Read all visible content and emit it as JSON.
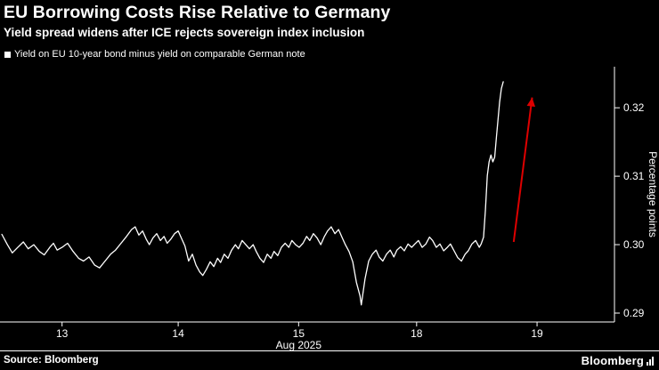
{
  "header": {
    "title": "EU Borrowing Costs Rise Relative to Germany",
    "subtitle": "Yield spread widens after ICE rejects sovereign index inclusion"
  },
  "legend": {
    "swatch_color": "#ffffff",
    "label": "Yield on EU 10-year bond minus yield on comparable German note"
  },
  "footer": {
    "source": "Source: Bloomberg",
    "logo": "Bloomberg"
  },
  "chart_data": {
    "type": "line",
    "title": "EU Borrowing Costs Rise Relative to Germany",
    "subtitle": "Yield spread widens after ICE rejects sovereign index inclusion",
    "series_name": "Yield on EU 10-year bond minus yield on comparable German note",
    "xlabel": "Aug 2025",
    "xlabel_pos": 0.486,
    "ylabel": "Percentage points",
    "ylim": [
      0.2887,
      0.326
    ],
    "yticks": [
      0.29,
      0.3,
      0.31,
      0.32
    ],
    "ytick_labels": [
      "0.29",
      "0.30",
      "0.31",
      "0.32"
    ],
    "xticks": [
      {
        "pos": 0.101,
        "label": "13"
      },
      {
        "pos": 0.29,
        "label": "14"
      },
      {
        "pos": 0.486,
        "label": "15"
      },
      {
        "pos": 0.678,
        "label": "18"
      },
      {
        "pos": 0.874,
        "label": "19"
      }
    ],
    "grid": false,
    "legend_position": "top-left",
    "axis_color": "#ffffff",
    "line_color": "#ffffff",
    "annotation_arrow": {
      "color": "#dd0000",
      "x1": 0.836,
      "v1": 0.3004,
      "x2": 0.866,
      "v2": 0.3215
    },
    "points": [
      [
        0.003,
        0.3015
      ],
      [
        0.012,
        0.3
      ],
      [
        0.02,
        0.2988
      ],
      [
        0.029,
        0.2996
      ],
      [
        0.038,
        0.3004
      ],
      [
        0.046,
        0.2994
      ],
      [
        0.055,
        0.3
      ],
      [
        0.064,
        0.299
      ],
      [
        0.072,
        0.2985
      ],
      [
        0.081,
        0.2996
      ],
      [
        0.087,
        0.3002
      ],
      [
        0.093,
        0.2992
      ],
      [
        0.101,
        0.2996
      ],
      [
        0.11,
        0.3002
      ],
      [
        0.119,
        0.299
      ],
      [
        0.128,
        0.298
      ],
      [
        0.136,
        0.2976
      ],
      [
        0.145,
        0.2982
      ],
      [
        0.154,
        0.297
      ],
      [
        0.162,
        0.2966
      ],
      [
        0.171,
        0.2976
      ],
      [
        0.18,
        0.2986
      ],
      [
        0.188,
        0.2992
      ],
      [
        0.197,
        0.3002
      ],
      [
        0.206,
        0.3012
      ],
      [
        0.214,
        0.3022
      ],
      [
        0.22,
        0.3026
      ],
      [
        0.226,
        0.3014
      ],
      [
        0.232,
        0.302
      ],
      [
        0.238,
        0.3008
      ],
      [
        0.243,
        0.3
      ],
      [
        0.249,
        0.301
      ],
      [
        0.255,
        0.3016
      ],
      [
        0.261,
        0.3006
      ],
      [
        0.267,
        0.3012
      ],
      [
        0.272,
        0.3002
      ],
      [
        0.278,
        0.3008
      ],
      [
        0.284,
        0.3016
      ],
      [
        0.29,
        0.302
      ],
      [
        0.296,
        0.3008
      ],
      [
        0.301,
        0.2998
      ],
      [
        0.307,
        0.2976
      ],
      [
        0.313,
        0.2986
      ],
      [
        0.319,
        0.297
      ],
      [
        0.325,
        0.296
      ],
      [
        0.33,
        0.2955
      ],
      [
        0.336,
        0.2964
      ],
      [
        0.342,
        0.2975
      ],
      [
        0.348,
        0.2968
      ],
      [
        0.354,
        0.298
      ],
      [
        0.359,
        0.2974
      ],
      [
        0.365,
        0.2986
      ],
      [
        0.371,
        0.298
      ],
      [
        0.377,
        0.2992
      ],
      [
        0.383,
        0.3
      ],
      [
        0.388,
        0.2994
      ],
      [
        0.394,
        0.3006
      ],
      [
        0.4,
        0.3
      ],
      [
        0.406,
        0.2994
      ],
      [
        0.412,
        0.3
      ],
      [
        0.417,
        0.299
      ],
      [
        0.423,
        0.298
      ],
      [
        0.429,
        0.2974
      ],
      [
        0.435,
        0.2986
      ],
      [
        0.441,
        0.298
      ],
      [
        0.446,
        0.299
      ],
      [
        0.452,
        0.2984
      ],
      [
        0.458,
        0.2996
      ],
      [
        0.464,
        0.3002
      ],
      [
        0.47,
        0.2996
      ],
      [
        0.475,
        0.3006
      ],
      [
        0.481,
        0.3
      ],
      [
        0.487,
        0.2996
      ],
      [
        0.493,
        0.3002
      ],
      [
        0.499,
        0.3012
      ],
      [
        0.504,
        0.3006
      ],
      [
        0.51,
        0.3016
      ],
      [
        0.516,
        0.301
      ],
      [
        0.522,
        0.3
      ],
      [
        0.528,
        0.3012
      ],
      [
        0.533,
        0.302
      ],
      [
        0.539,
        0.3026
      ],
      [
        0.545,
        0.3016
      ],
      [
        0.551,
        0.3022
      ],
      [
        0.557,
        0.301
      ],
      [
        0.562,
        0.3
      ],
      [
        0.568,
        0.299
      ],
      [
        0.574,
        0.2975
      ],
      [
        0.58,
        0.2945
      ],
      [
        0.586,
        0.2925
      ],
      [
        0.588,
        0.2912
      ],
      [
        0.594,
        0.295
      ],
      [
        0.6,
        0.2976
      ],
      [
        0.606,
        0.2986
      ],
      [
        0.612,
        0.2992
      ],
      [
        0.617,
        0.2982
      ],
      [
        0.623,
        0.2976
      ],
      [
        0.629,
        0.2986
      ],
      [
        0.635,
        0.2992
      ],
      [
        0.641,
        0.2982
      ],
      [
        0.646,
        0.2992
      ],
      [
        0.652,
        0.2997
      ],
      [
        0.658,
        0.2991
      ],
      [
        0.664,
        0.3001
      ],
      [
        0.67,
        0.2996
      ],
      [
        0.675,
        0.3001
      ],
      [
        0.681,
        0.3006
      ],
      [
        0.687,
        0.2996
      ],
      [
        0.693,
        0.3001
      ],
      [
        0.699,
        0.3011
      ],
      [
        0.704,
        0.3006
      ],
      [
        0.71,
        0.2996
      ],
      [
        0.716,
        0.3001
      ],
      [
        0.722,
        0.2991
      ],
      [
        0.728,
        0.2996
      ],
      [
        0.733,
        0.3001
      ],
      [
        0.739,
        0.2991
      ],
      [
        0.745,
        0.2981
      ],
      [
        0.751,
        0.2976
      ],
      [
        0.757,
        0.2986
      ],
      [
        0.762,
        0.2991
      ],
      [
        0.768,
        0.3001
      ],
      [
        0.774,
        0.3006
      ],
      [
        0.78,
        0.2996
      ],
      [
        0.783,
        0.3001
      ],
      [
        0.787,
        0.3011
      ],
      [
        0.79,
        0.3051
      ],
      [
        0.793,
        0.3101
      ],
      [
        0.796,
        0.3121
      ],
      [
        0.799,
        0.3131
      ],
      [
        0.802,
        0.3121
      ],
      [
        0.805,
        0.3128
      ],
      [
        0.808,
        0.3158
      ],
      [
        0.811,
        0.3188
      ],
      [
        0.813,
        0.3208
      ],
      [
        0.816,
        0.3228
      ],
      [
        0.819,
        0.3238
      ]
    ]
  }
}
